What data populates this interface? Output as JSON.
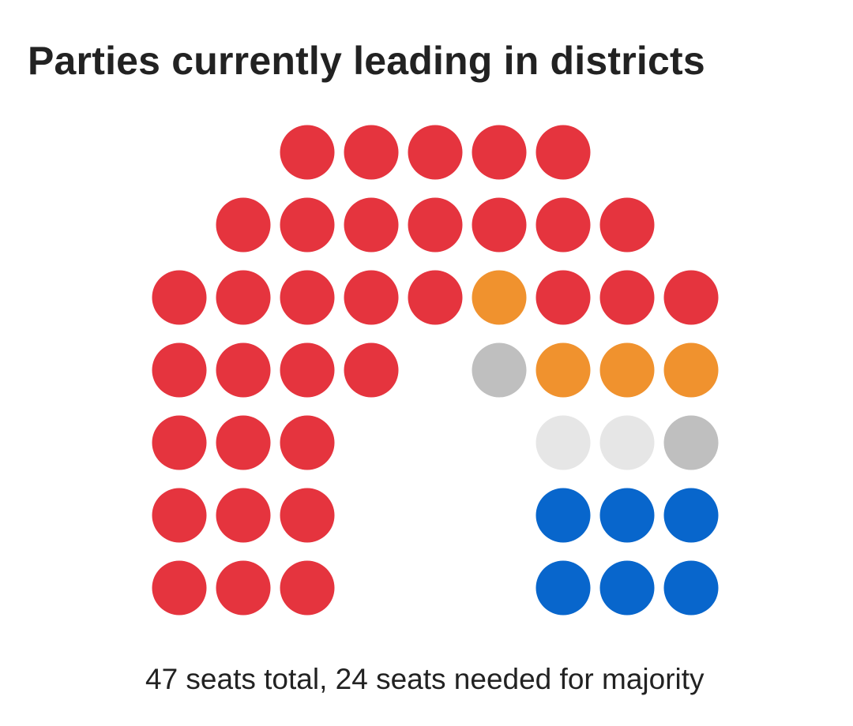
{
  "title": "Parties currently leading in districts",
  "caption": "47 seats total, 24 seats needed for majority",
  "chart_data": {
    "type": "parliament-dot-chart",
    "total_seats": 47,
    "majority": 24,
    "colors": {
      "red": "#e5343e",
      "orange": "#f0922e",
      "gray": "#bfbfbf",
      "light_gray": "#e6e6e6",
      "blue": "#0866cc"
    },
    "seats_by_color": [
      {
        "color": "red",
        "seats": 33
      },
      {
        "color": "orange",
        "seats": 4
      },
      {
        "color": "gray",
        "seats": 2
      },
      {
        "color": "light_gray",
        "seats": 2
      },
      {
        "color": "blue",
        "seats": 6
      }
    ],
    "rows": [
      [
        "red",
        "red",
        "red",
        "red",
        "red"
      ],
      [
        "red",
        "red",
        "red",
        "red",
        "red",
        "red",
        "red"
      ],
      [
        "red",
        "red",
        "red",
        "red",
        "red",
        "orange",
        "red",
        "red",
        "red"
      ],
      [
        "red",
        "red",
        "red",
        "red",
        "gray",
        "orange",
        "orange",
        "orange"
      ],
      [
        "red",
        "red",
        "red",
        "light_gray",
        "light_gray",
        "gray"
      ],
      [
        "red",
        "red",
        "red",
        "blue",
        "blue",
        "blue"
      ],
      [
        "red",
        "red",
        "red",
        "blue",
        "blue",
        "blue"
      ]
    ]
  }
}
